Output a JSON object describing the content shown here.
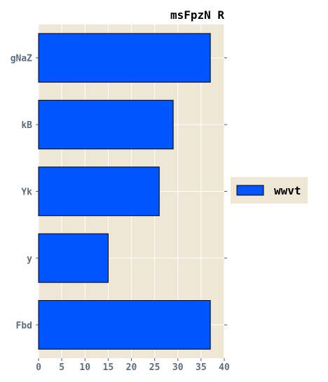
{
  "chart_data": {
    "type": "bar",
    "orientation": "horizontal",
    "title": "msFpzN R",
    "xlabel": "",
    "ylabel": "",
    "categories": [
      "gNaZ",
      "kB",
      "Yk",
      "y",
      "Fbd"
    ],
    "series": [
      {
        "name": "wwvt",
        "values": [
          37,
          29,
          26,
          15,
          37
        ]
      }
    ],
    "xlim": [
      0,
      40
    ],
    "xticks": [
      0,
      5,
      10,
      15,
      20,
      25,
      30,
      35,
      40
    ],
    "grid": true,
    "legend": "right, outside plot",
    "colors": {
      "bar": "#0055ff",
      "bar_edge": "#000000",
      "plot_background": "#efe7d6",
      "legend_background": "#efe7d6",
      "grid": "#ffffff",
      "tick_label": "#5a6e80"
    }
  }
}
